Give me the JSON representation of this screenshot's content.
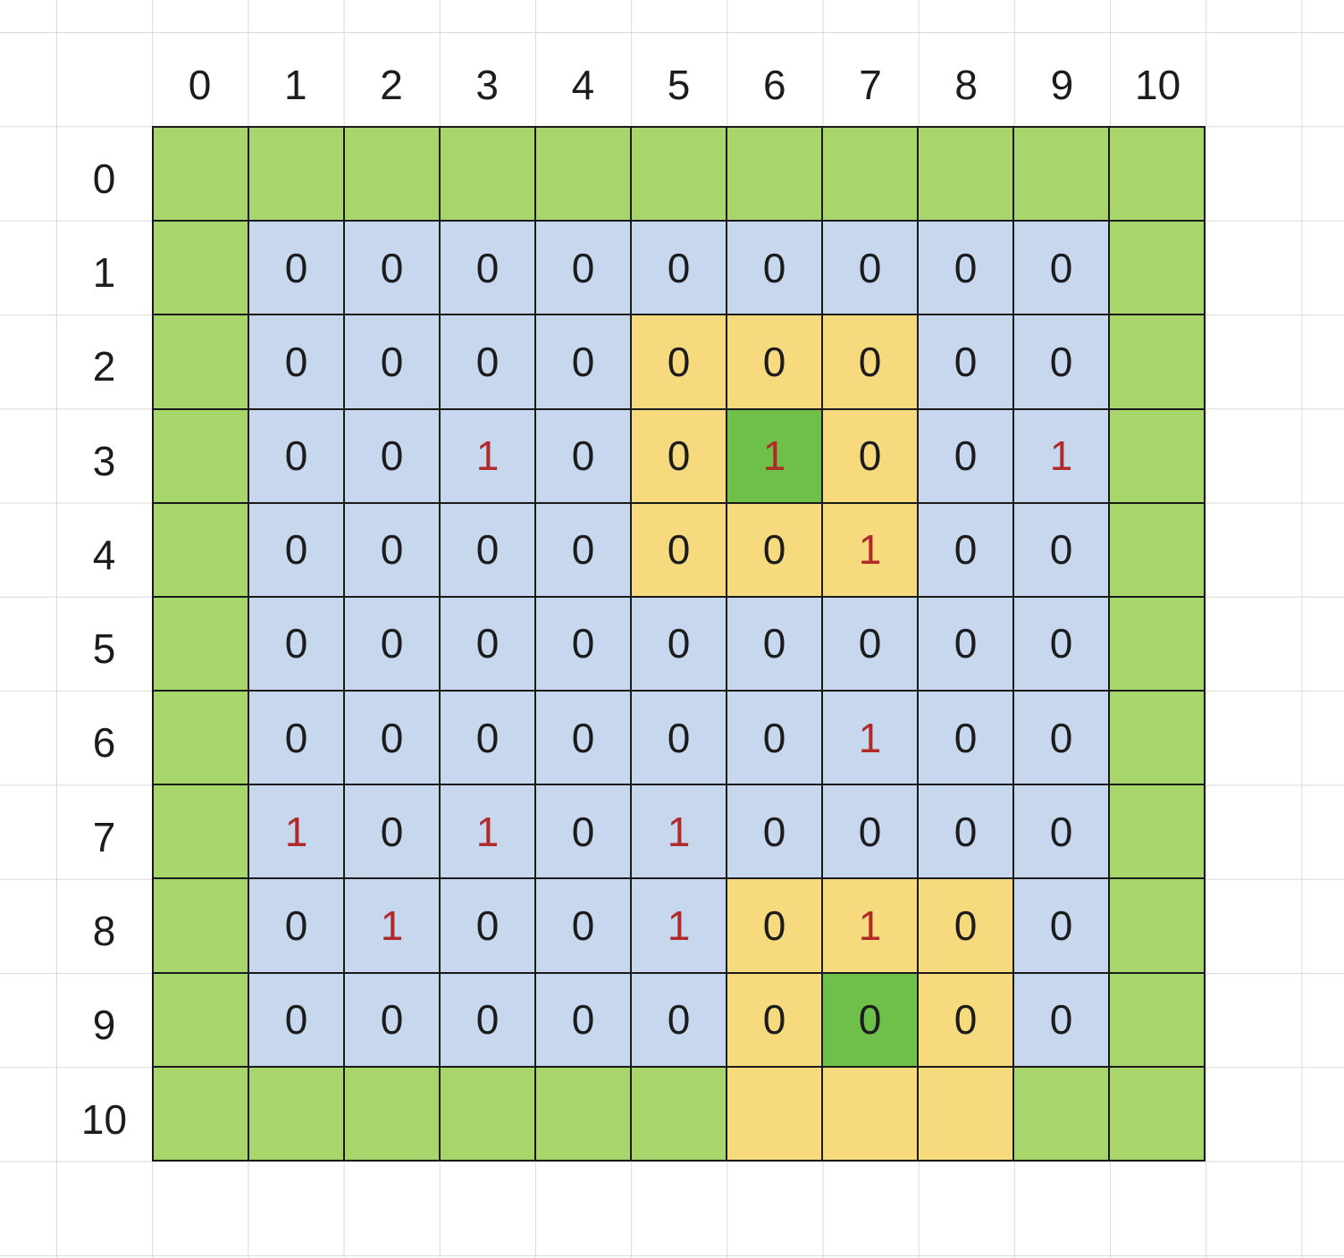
{
  "column_headers": [
    "0",
    "1",
    "2",
    "3",
    "4",
    "5",
    "6",
    "7",
    "8",
    "9",
    "10"
  ],
  "row_headers": [
    "0",
    "1",
    "2",
    "3",
    "4",
    "5",
    "6",
    "7",
    "8",
    "9",
    "10"
  ],
  "colors": {
    "border": "#a9d56d",
    "interior": "#c6d7ee",
    "highlight": "#f8da7e",
    "center": "#6fbf4b",
    "digit": "#1c1c1c",
    "digit_one": "#b02a2a"
  },
  "cells": [
    [
      {
        "v": "",
        "c": "border"
      },
      {
        "v": "",
        "c": "border"
      },
      {
        "v": "",
        "c": "border"
      },
      {
        "v": "",
        "c": "border"
      },
      {
        "v": "",
        "c": "border"
      },
      {
        "v": "",
        "c": "border"
      },
      {
        "v": "",
        "c": "border"
      },
      {
        "v": "",
        "c": "border"
      },
      {
        "v": "",
        "c": "border"
      },
      {
        "v": "",
        "c": "border"
      },
      {
        "v": "",
        "c": "border"
      }
    ],
    [
      {
        "v": "",
        "c": "border"
      },
      {
        "v": "0",
        "c": "interior"
      },
      {
        "v": "0",
        "c": "interior"
      },
      {
        "v": "0",
        "c": "interior"
      },
      {
        "v": "0",
        "c": "interior"
      },
      {
        "v": "0",
        "c": "interior"
      },
      {
        "v": "0",
        "c": "interior"
      },
      {
        "v": "0",
        "c": "interior"
      },
      {
        "v": "0",
        "c": "interior"
      },
      {
        "v": "0",
        "c": "interior"
      },
      {
        "v": "",
        "c": "border"
      }
    ],
    [
      {
        "v": "",
        "c": "border"
      },
      {
        "v": "0",
        "c": "interior"
      },
      {
        "v": "0",
        "c": "interior"
      },
      {
        "v": "0",
        "c": "interior"
      },
      {
        "v": "0",
        "c": "interior"
      },
      {
        "v": "0",
        "c": "highlight"
      },
      {
        "v": "0",
        "c": "highlight"
      },
      {
        "v": "0",
        "c": "highlight"
      },
      {
        "v": "0",
        "c": "interior"
      },
      {
        "v": "0",
        "c": "interior"
      },
      {
        "v": "",
        "c": "border"
      }
    ],
    [
      {
        "v": "",
        "c": "border"
      },
      {
        "v": "0",
        "c": "interior"
      },
      {
        "v": "0",
        "c": "interior"
      },
      {
        "v": "1",
        "c": "interior"
      },
      {
        "v": "0",
        "c": "interior"
      },
      {
        "v": "0",
        "c": "highlight"
      },
      {
        "v": "1",
        "c": "center"
      },
      {
        "v": "0",
        "c": "highlight"
      },
      {
        "v": "0",
        "c": "interior"
      },
      {
        "v": "1",
        "c": "interior"
      },
      {
        "v": "",
        "c": "border"
      }
    ],
    [
      {
        "v": "",
        "c": "border"
      },
      {
        "v": "0",
        "c": "interior"
      },
      {
        "v": "0",
        "c": "interior"
      },
      {
        "v": "0",
        "c": "interior"
      },
      {
        "v": "0",
        "c": "interior"
      },
      {
        "v": "0",
        "c": "highlight"
      },
      {
        "v": "0",
        "c": "highlight"
      },
      {
        "v": "1",
        "c": "highlight"
      },
      {
        "v": "0",
        "c": "interior"
      },
      {
        "v": "0",
        "c": "interior"
      },
      {
        "v": "",
        "c": "border"
      }
    ],
    [
      {
        "v": "",
        "c": "border"
      },
      {
        "v": "0",
        "c": "interior"
      },
      {
        "v": "0",
        "c": "interior"
      },
      {
        "v": "0",
        "c": "interior"
      },
      {
        "v": "0",
        "c": "interior"
      },
      {
        "v": "0",
        "c": "interior"
      },
      {
        "v": "0",
        "c": "interior"
      },
      {
        "v": "0",
        "c": "interior"
      },
      {
        "v": "0",
        "c": "interior"
      },
      {
        "v": "0",
        "c": "interior"
      },
      {
        "v": "",
        "c": "border"
      }
    ],
    [
      {
        "v": "",
        "c": "border"
      },
      {
        "v": "0",
        "c": "interior"
      },
      {
        "v": "0",
        "c": "interior"
      },
      {
        "v": "0",
        "c": "interior"
      },
      {
        "v": "0",
        "c": "interior"
      },
      {
        "v": "0",
        "c": "interior"
      },
      {
        "v": "0",
        "c": "interior"
      },
      {
        "v": "1",
        "c": "interior"
      },
      {
        "v": "0",
        "c": "interior"
      },
      {
        "v": "0",
        "c": "interior"
      },
      {
        "v": "",
        "c": "border"
      }
    ],
    [
      {
        "v": "",
        "c": "border"
      },
      {
        "v": "1",
        "c": "interior"
      },
      {
        "v": "0",
        "c": "interior"
      },
      {
        "v": "1",
        "c": "interior"
      },
      {
        "v": "0",
        "c": "interior"
      },
      {
        "v": "1",
        "c": "interior"
      },
      {
        "v": "0",
        "c": "interior"
      },
      {
        "v": "0",
        "c": "interior"
      },
      {
        "v": "0",
        "c": "interior"
      },
      {
        "v": "0",
        "c": "interior"
      },
      {
        "v": "",
        "c": "border"
      }
    ],
    [
      {
        "v": "",
        "c": "border"
      },
      {
        "v": "0",
        "c": "interior"
      },
      {
        "v": "1",
        "c": "interior"
      },
      {
        "v": "0",
        "c": "interior"
      },
      {
        "v": "0",
        "c": "interior"
      },
      {
        "v": "1",
        "c": "interior"
      },
      {
        "v": "0",
        "c": "highlight"
      },
      {
        "v": "1",
        "c": "highlight"
      },
      {
        "v": "0",
        "c": "highlight"
      },
      {
        "v": "0",
        "c": "interior"
      },
      {
        "v": "",
        "c": "border"
      }
    ],
    [
      {
        "v": "",
        "c": "border"
      },
      {
        "v": "0",
        "c": "interior"
      },
      {
        "v": "0",
        "c": "interior"
      },
      {
        "v": "0",
        "c": "interior"
      },
      {
        "v": "0",
        "c": "interior"
      },
      {
        "v": "0",
        "c": "interior"
      },
      {
        "v": "0",
        "c": "highlight"
      },
      {
        "v": "0",
        "c": "center"
      },
      {
        "v": "0",
        "c": "highlight"
      },
      {
        "v": "0",
        "c": "interior"
      },
      {
        "v": "",
        "c": "border"
      }
    ],
    [
      {
        "v": "",
        "c": "border"
      },
      {
        "v": "",
        "c": "border"
      },
      {
        "v": "",
        "c": "border"
      },
      {
        "v": "",
        "c": "border"
      },
      {
        "v": "",
        "c": "border"
      },
      {
        "v": "",
        "c": "border"
      },
      {
        "v": "",
        "c": "highlight"
      },
      {
        "v": "",
        "c": "highlight"
      },
      {
        "v": "",
        "c": "highlight"
      },
      {
        "v": "",
        "c": "border"
      },
      {
        "v": "",
        "c": "border"
      }
    ]
  ]
}
